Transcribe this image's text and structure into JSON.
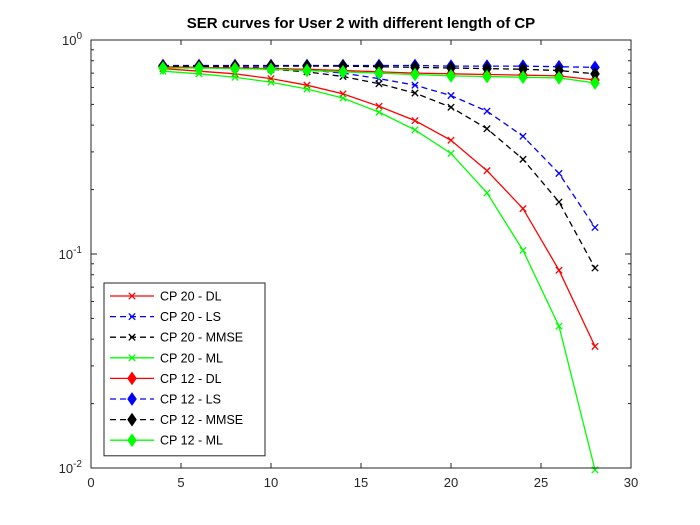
{
  "chart_data": {
    "type": "line",
    "title": "SER curves for User 2 with different length of CP",
    "xlabel": "",
    "ylabel": "",
    "xlim": [
      0,
      30
    ],
    "ylim": [
      0.01,
      1
    ],
    "yscale": "log",
    "grid": false,
    "legend_position": "bottom-left",
    "x_ticks": [
      "0",
      "5",
      "10",
      "15",
      "20",
      "25",
      "30"
    ],
    "y_ticks": [
      {
        "value": 1,
        "base": "10",
        "exp": "0"
      },
      {
        "value": 0.1,
        "base": "10",
        "exp": "-1"
      },
      {
        "value": 0.01,
        "base": "10",
        "exp": "-2"
      }
    ],
    "x": [
      4,
      6,
      8,
      10,
      12,
      14,
      16,
      18,
      20,
      22,
      24,
      26,
      28
    ],
    "series": [
      {
        "name": "CP 20 - DL",
        "color": "#ff0000",
        "dash": "solid",
        "marker": "x",
        "values": [
          0.735,
          0.715,
          0.695,
          0.66,
          0.615,
          0.56,
          0.49,
          0.42,
          0.34,
          0.245,
          0.163,
          0.084,
          0.037
        ]
      },
      {
        "name": "CP 20 - LS",
        "color": "#0000ff",
        "dash": "dashed",
        "marker": "x",
        "values": [
          0.75,
          0.748,
          0.745,
          0.74,
          0.725,
          0.7,
          0.66,
          0.615,
          0.55,
          0.465,
          0.355,
          0.238,
          0.133
        ]
      },
      {
        "name": "CP 20 - MMSE",
        "color": "#000000",
        "dash": "dashed",
        "marker": "x",
        "values": [
          0.75,
          0.745,
          0.74,
          0.73,
          0.71,
          0.675,
          0.625,
          0.565,
          0.485,
          0.385,
          0.277,
          0.175,
          0.086
        ]
      },
      {
        "name": "CP 20 - ML",
        "color": "#00ff00",
        "dash": "solid",
        "marker": "x",
        "values": [
          0.715,
          0.695,
          0.67,
          0.635,
          0.59,
          0.535,
          0.46,
          0.38,
          0.295,
          0.193,
          0.104,
          0.046,
          0.0098
        ]
      },
      {
        "name": "CP 12 - DL",
        "color": "#ff0000",
        "dash": "solid",
        "marker": "diamond",
        "values": [
          0.75,
          0.745,
          0.74,
          0.735,
          0.73,
          0.72,
          0.71,
          0.7,
          0.695,
          0.69,
          0.685,
          0.68,
          0.65
        ]
      },
      {
        "name": "CP 12 - LS",
        "color": "#0000ff",
        "dash": "dashed",
        "marker": "diamond",
        "values": [
          0.76,
          0.76,
          0.76,
          0.76,
          0.76,
          0.76,
          0.76,
          0.76,
          0.755,
          0.755,
          0.755,
          0.75,
          0.745
        ]
      },
      {
        "name": "CP 12 - MMSE",
        "color": "#000000",
        "dash": "dashed",
        "marker": "diamond",
        "values": [
          0.755,
          0.755,
          0.755,
          0.755,
          0.755,
          0.755,
          0.75,
          0.745,
          0.74,
          0.735,
          0.73,
          0.72,
          0.695
        ]
      },
      {
        "name": "CP 12 - ML",
        "color": "#00ff00",
        "dash": "solid",
        "marker": "diamond",
        "values": [
          0.74,
          0.74,
          0.735,
          0.73,
          0.72,
          0.71,
          0.7,
          0.69,
          0.68,
          0.675,
          0.67,
          0.665,
          0.63
        ]
      }
    ]
  }
}
